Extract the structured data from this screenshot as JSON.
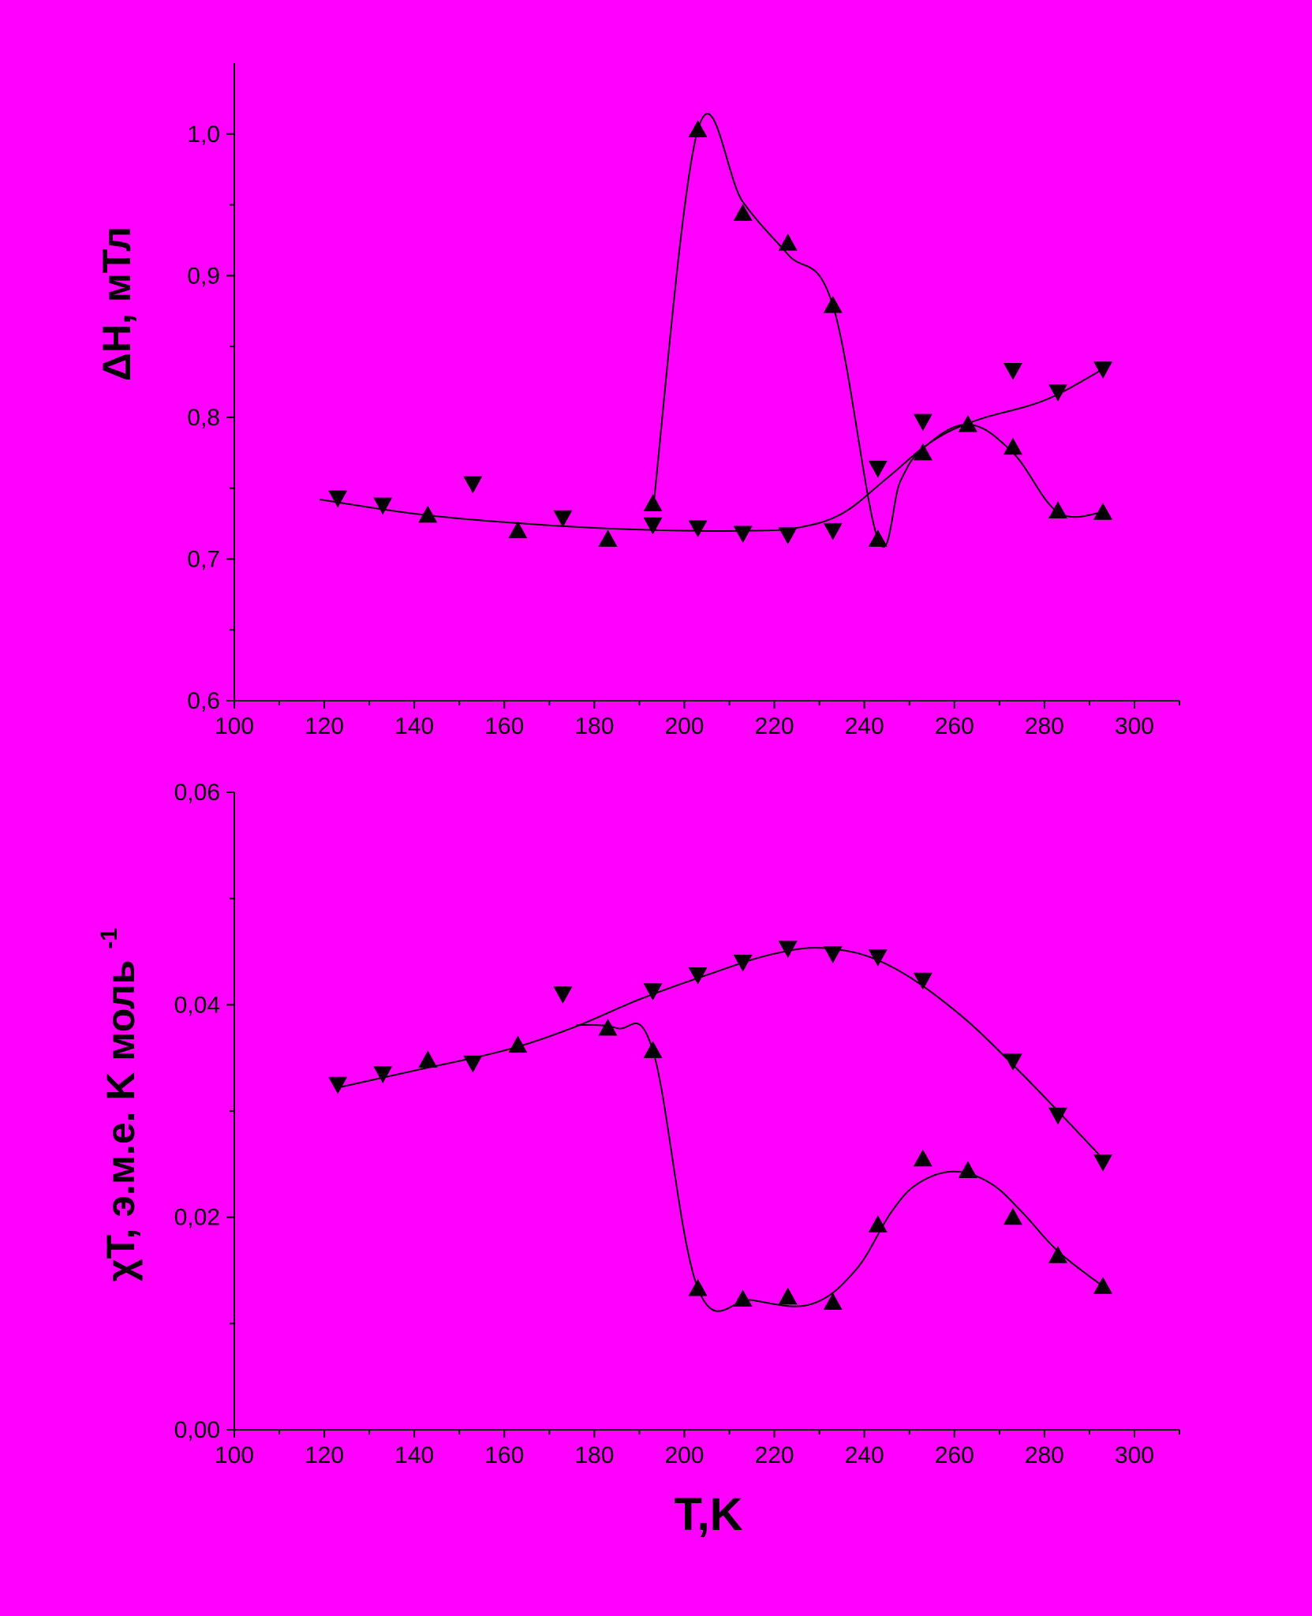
{
  "figure": {
    "background": "#ff00ff",
    "foreground": "#000000"
  },
  "chart_data": [
    {
      "type": "scatter",
      "id": "top",
      "title": "",
      "xlabel": "",
      "ylabel": "ΔH, мТл",
      "xlim": [
        100,
        310
      ],
      "ylim": [
        0.6,
        1.05
      ],
      "xticks": [
        "100",
        "120",
        "140",
        "160",
        "180",
        "200",
        "220",
        "240",
        "260",
        "280",
        "300"
      ],
      "yticks": [
        "0,6",
        "0,7",
        "0,8",
        "0,9",
        "1,0"
      ],
      "grid": false,
      "series": [
        {
          "marker": "triangle-down",
          "points": [
            [
              123,
              0.743
            ],
            [
              133,
              0.738
            ],
            [
              153,
              0.753
            ],
            [
              173,
              0.729
            ],
            [
              193,
              0.724
            ],
            [
              203,
              0.722
            ],
            [
              213,
              0.718
            ],
            [
              223,
              0.717
            ],
            [
              233,
              0.72
            ],
            [
              243,
              0.764
            ],
            [
              253,
              0.797
            ],
            [
              273,
              0.833
            ],
            [
              283,
              0.818
            ],
            [
              293,
              0.834
            ]
          ],
          "curve": [
            [
              119,
              0.742
            ],
            [
              140,
              0.732
            ],
            [
              160,
              0.726
            ],
            [
              180,
              0.722
            ],
            [
              200,
              0.72
            ],
            [
              215,
              0.72
            ],
            [
              225,
              0.722
            ],
            [
              235,
              0.732
            ],
            [
              245,
              0.757
            ],
            [
              255,
              0.783
            ],
            [
              265,
              0.798
            ],
            [
              280,
              0.812
            ],
            [
              293,
              0.834
            ]
          ]
        },
        {
          "marker": "triangle-up",
          "points": [
            [
              143,
              0.731
            ],
            [
              163,
              0.72
            ],
            [
              183,
              0.714
            ],
            [
              193,
              0.739
            ],
            [
              203,
              1.003
            ],
            [
              213,
              0.944
            ],
            [
              223,
              0.923
            ],
            [
              233,
              0.879
            ],
            [
              243,
              0.714
            ],
            [
              253,
              0.775
            ],
            [
              263,
              0.795
            ],
            [
              273,
              0.779
            ],
            [
              283,
              0.734
            ],
            [
              293,
              0.733
            ]
          ],
          "curve": [
            [
              193,
              0.734
            ],
            [
              203,
              1.003
            ],
            [
              213,
              0.952
            ],
            [
              223,
              0.915
            ],
            [
              233,
              0.879
            ],
            [
              243,
              0.714
            ],
            [
              248,
              0.755
            ],
            [
              253,
              0.778
            ],
            [
              263,
              0.795
            ],
            [
              273,
              0.775
            ],
            [
              283,
              0.733
            ],
            [
              293,
              0.733
            ]
          ]
        }
      ]
    },
    {
      "type": "scatter",
      "id": "bottom",
      "title": "",
      "xlabel": "T,K",
      "ylabel_main": "χT, э.м.е. K моль",
      "ylabel_sup": "-1",
      "xlim": [
        100,
        310
      ],
      "ylim": [
        0.0,
        0.06
      ],
      "xticks": [
        "100",
        "120",
        "140",
        "160",
        "180",
        "200",
        "220",
        "240",
        "260",
        "280",
        "300"
      ],
      "yticks": [
        "0,00",
        "0,02",
        "0,04",
        "0,06"
      ],
      "grid": false,
      "series": [
        {
          "marker": "triangle-down",
          "points": [
            [
              123,
              0.0325
            ],
            [
              133,
              0.0335
            ],
            [
              153,
              0.0345
            ],
            [
              173,
              0.041
            ],
            [
              193,
              0.0413
            ],
            [
              203,
              0.0428
            ],
            [
              213,
              0.044
            ],
            [
              223,
              0.0453
            ],
            [
              233,
              0.0448
            ],
            [
              243,
              0.0445
            ],
            [
              253,
              0.0423
            ],
            [
              273,
              0.0347
            ],
            [
              283,
              0.0296
            ],
            [
              293,
              0.0252
            ]
          ],
          "curve": [
            [
              123,
              0.0322
            ],
            [
              140,
              0.0338
            ],
            [
              160,
              0.0357
            ],
            [
              175,
              0.0378
            ],
            [
              190,
              0.0405
            ],
            [
              205,
              0.0428
            ],
            [
              220,
              0.0448
            ],
            [
              232,
              0.0453
            ],
            [
              245,
              0.0438
            ],
            [
              260,
              0.0395
            ],
            [
              275,
              0.0335
            ],
            [
              293,
              0.0255
            ]
          ]
        },
        {
          "marker": "triangle-up",
          "points": [
            [
              143,
              0.0348
            ],
            [
              163,
              0.0362
            ],
            [
              183,
              0.0378
            ],
            [
              193,
              0.0357
            ],
            [
              203,
              0.0133
            ],
            [
              213,
              0.0123
            ],
            [
              223,
              0.0125
            ],
            [
              233,
              0.012
            ],
            [
              243,
              0.0193
            ],
            [
              253,
              0.0255
            ],
            [
              263,
              0.0244
            ],
            [
              273,
              0.02
            ],
            [
              283,
              0.0164
            ],
            [
              293,
              0.0135
            ]
          ],
          "curve": [
            [
              176,
              0.0381
            ],
            [
              185,
              0.0378
            ],
            [
              193,
              0.0357
            ],
            [
              203,
              0.0133
            ],
            [
              215,
              0.0122
            ],
            [
              228,
              0.0118
            ],
            [
              238,
              0.015
            ],
            [
              246,
              0.0205
            ],
            [
              252,
              0.0232
            ],
            [
              260,
              0.0243
            ],
            [
              268,
              0.0232
            ],
            [
              275,
              0.0205
            ],
            [
              283,
              0.0168
            ],
            [
              293,
              0.0135
            ]
          ]
        }
      ]
    }
  ]
}
